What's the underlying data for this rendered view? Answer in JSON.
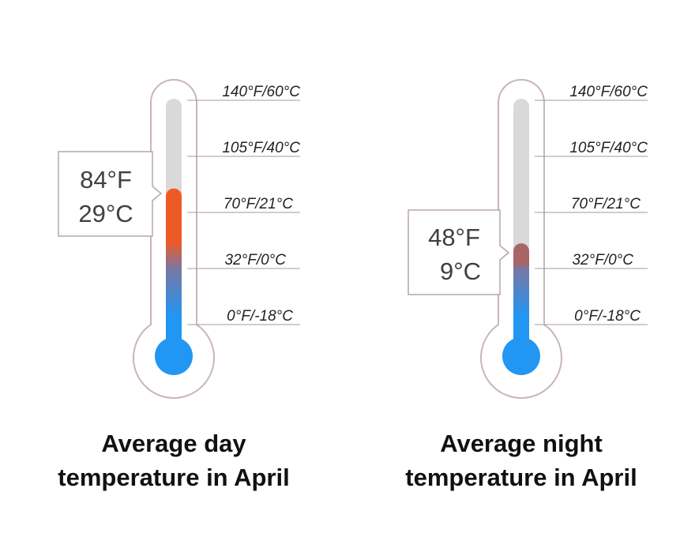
{
  "scale": {
    "ticks": [
      {
        "f": 140,
        "c": 60,
        "label": "140°F/60°C"
      },
      {
        "f": 105,
        "c": 40,
        "label": "105°F/40°C"
      },
      {
        "f": 70,
        "c": 21,
        "label": "70°F/21°C"
      },
      {
        "f": 32,
        "c": 0,
        "label": "32°F/0°C"
      },
      {
        "f": 0,
        "c": -18,
        "label": "0°F/-18°C"
      }
    ]
  },
  "thermometers": [
    {
      "value_f": 84,
      "value_c": 29,
      "readout_f": "84°F",
      "readout_c": "29°C",
      "caption_line1": "Average day",
      "caption_line2": "temperature in April",
      "top_color": "#ee5a24"
    },
    {
      "value_f": 48,
      "value_c": 9,
      "readout_f": "48°F",
      "readout_c": "9°C",
      "caption_line1": "Average night",
      "caption_line2": "temperature in April",
      "top_color": "#a86466"
    }
  ],
  "colors": {
    "cold": "#2196f3",
    "empty_tube": "#d9d9d9",
    "outline": "#c9b6b6",
    "tick_line": "#9e9e9e"
  }
}
